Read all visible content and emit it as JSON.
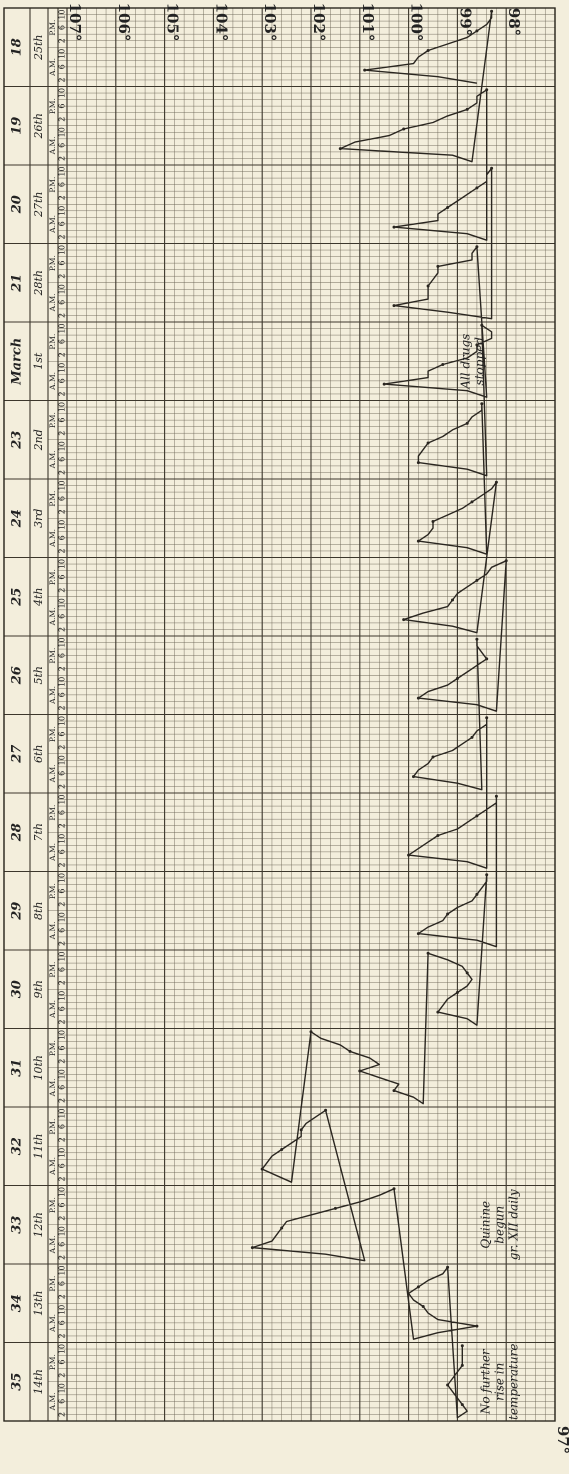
{
  "chart_data": {
    "type": "line",
    "title": "",
    "xlabel": "",
    "ylabel": "",
    "ylim": [
      97,
      107
    ],
    "grid": true,
    "legend": "none",
    "orientation": "rotated-90",
    "temperature_ticks": [
      "107°",
      "106°",
      "105°",
      "104°",
      "103°",
      "102°",
      "101°",
      "100°",
      "99°",
      "98°",
      "97°"
    ],
    "day_numbers": [
      "18",
      "19",
      "20",
      "21",
      "March",
      "23",
      "24",
      "25",
      "26",
      "27",
      "28",
      "29",
      "30",
      "31",
      "32",
      "33",
      "34",
      "35"
    ],
    "dates": [
      "25th",
      "26th",
      "27th",
      "28th",
      "1st",
      "2nd",
      "3rd",
      "4th",
      "5th",
      "6th",
      "7th",
      "8th",
      "9th",
      "10th",
      "11th",
      "12th",
      "13th",
      "14th"
    ],
    "period_labels": [
      "A.M.",
      "P.M."
    ],
    "hour_labels": [
      "2",
      "6",
      "10"
    ],
    "series": [
      {
        "values": [
          [
            98.6,
            99.4,
            100.9,
            99.9,
            99.8,
            99.6,
            99.2,
            98.8,
            98.6,
            98.4,
            98.3,
            98.3
          ],
          [
            98.7,
            99.1,
            101.4,
            101.1,
            100.4,
            100.1,
            99.5,
            99.2,
            98.8,
            98.6,
            98.6,
            98.4
          ],
          [
            98.4,
            98.8,
            100.3,
            99.4,
            99.4,
            99.2,
            99.0,
            98.8,
            98.6,
            98.4,
            98.4,
            98.3
          ],
          [
            98.3,
            99.2,
            100.3,
            99.6,
            99.6,
            99.6,
            99.5,
            99.4,
            99.4,
            98.7,
            98.7,
            98.6
          ],
          [
            98.4,
            98.8,
            100.5,
            99.6,
            99.6,
            99.3,
            98.8,
            98.6,
            98.6,
            98.3,
            98.3,
            98.5
          ],
          [
            98.4,
            98.8,
            99.8,
            99.8,
            99.7,
            99.6,
            99.3,
            99.1,
            98.8,
            98.7,
            98.5,
            98.5
          ],
          [
            98.4,
            98.8,
            99.8,
            99.6,
            99.5,
            99.5,
            99.2,
            98.9,
            98.7,
            98.5,
            98.3,
            98.2
          ],
          [
            98.6,
            99.1,
            100.1,
            99.7,
            99.2,
            99.1,
            99.0,
            98.8,
            98.6,
            98.4,
            98.3,
            98.0
          ],
          [
            98.2,
            98.6,
            99.8,
            99.6,
            99.2,
            99.0,
            98.8,
            98.6,
            98.4,
            98.5,
            98.6,
            98.6
          ],
          [
            98.5,
            99.0,
            99.9,
            99.8,
            99.6,
            99.5,
            99.1,
            98.9,
            98.7,
            98.6,
            98.4,
            98.4
          ],
          [
            98.4,
            98.8,
            100.0,
            99.8,
            99.6,
            99.4,
            99.0,
            98.8,
            98.6,
            98.4,
            98.2,
            98.2
          ],
          [
            98.2,
            98.6,
            99.8,
            99.6,
            99.3,
            99.2,
            99.0,
            98.7,
            98.6,
            98.5,
            98.4,
            98.4
          ],
          [
            98.6,
            98.8,
            99.4,
            99.3,
            99.2,
            99.0,
            98.8,
            98.7,
            98.8,
            98.9,
            99.2,
            99.6
          ],
          [
            99.7,
            99.9,
            100.3,
            100.2,
            100.6,
            101.0,
            100.6,
            100.8,
            101.2,
            101.4,
            101.8,
            102.0
          ],
          [
            102.4,
            102.7,
            103.0,
            102.9,
            102.8,
            102.6,
            102.4,
            102.2,
            102.2,
            102.1,
            101.9,
            101.7
          ],
          [
            100.9,
            101.7,
            103.2,
            102.8,
            102.7,
            102.6,
            102.5,
            102.0,
            101.5,
            101.0,
            100.6,
            100.3
          ],
          [
            99.9,
            99.4,
            98.6,
            99.4,
            99.6,
            99.7,
            99.9,
            100.0,
            99.8,
            99.6,
            99.3,
            99.2
          ],
          [
            99.0,
            98.8,
            98.9,
            99.0,
            99.1,
            99.2,
            99.1,
            99.0,
            98.9,
            98.9,
            98.9,
            98.9
          ]
        ]
      }
    ],
    "annotations": [
      {
        "text_lines": [
          "All drugs",
          "stopped"
        ],
        "date": "1st"
      },
      {
        "text_lines": [
          "Quinine",
          "begun",
          "gr. XII daily"
        ],
        "date": "12th"
      },
      {
        "text_lines": [
          "No further",
          "rise in",
          "temperature"
        ],
        "date": "14th"
      }
    ]
  }
}
